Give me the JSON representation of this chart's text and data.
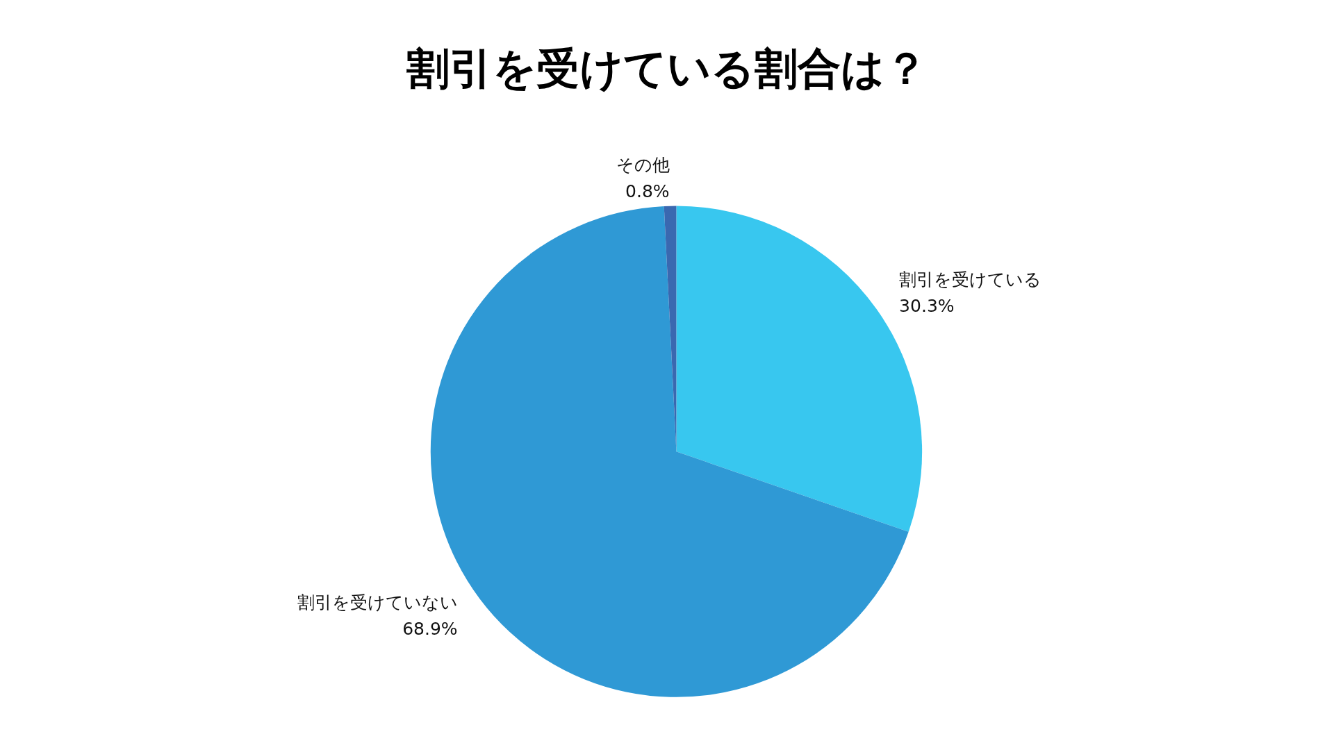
{
  "chart_data": {
    "type": "pie",
    "title": "割引を受けている割合は？",
    "categories": [
      "割引を受けている",
      "割引を受けていない",
      "その他"
    ],
    "values": [
      30.3,
      68.9,
      0.8
    ],
    "colors": [
      "#38c7ef",
      "#2f99d5",
      "#3a68b0"
    ],
    "value_labels": [
      "30.3%",
      "68.9%",
      "0.8%"
    ]
  }
}
